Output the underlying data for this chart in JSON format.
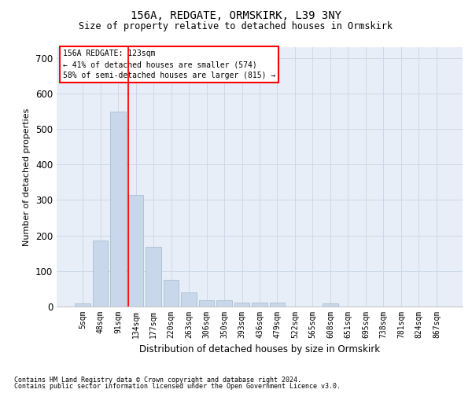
{
  "title1": "156A, REDGATE, ORMSKIRK, L39 3NY",
  "title2": "Size of property relative to detached houses in Ormskirk",
  "xlabel": "Distribution of detached houses by size in Ormskirk",
  "ylabel": "Number of detached properties",
  "bar_color": "#c8d8ea",
  "bar_edge_color": "#a0b8cc",
  "categories": [
    "5sqm",
    "48sqm",
    "91sqm",
    "134sqm",
    "177sqm",
    "220sqm",
    "263sqm",
    "306sqm",
    "350sqm",
    "393sqm",
    "436sqm",
    "479sqm",
    "522sqm",
    "565sqm",
    "608sqm",
    "651sqm",
    "695sqm",
    "738sqm",
    "781sqm",
    "824sqm",
    "867sqm"
  ],
  "values": [
    9,
    185,
    548,
    315,
    168,
    76,
    40,
    18,
    18,
    10,
    12,
    12,
    0,
    0,
    8,
    0,
    0,
    0,
    0,
    0,
    0
  ],
  "ylim": [
    0,
    730
  ],
  "yticks": [
    0,
    100,
    200,
    300,
    400,
    500,
    600,
    700
  ],
  "property_label": "156A REDGATE: 123sqm",
  "pct_smaller": "41% of detached houses are smaller (574)",
  "pct_larger": "58% of semi-detached houses are larger (815)",
  "vline_x": 2.57,
  "footnote1": "Contains HM Land Registry data © Crown copyright and database right 2024.",
  "footnote2": "Contains public sector information licensed under the Open Government Licence v3.0.",
  "grid_color": "#cdd8e8",
  "bg_color": "#e8eef8"
}
